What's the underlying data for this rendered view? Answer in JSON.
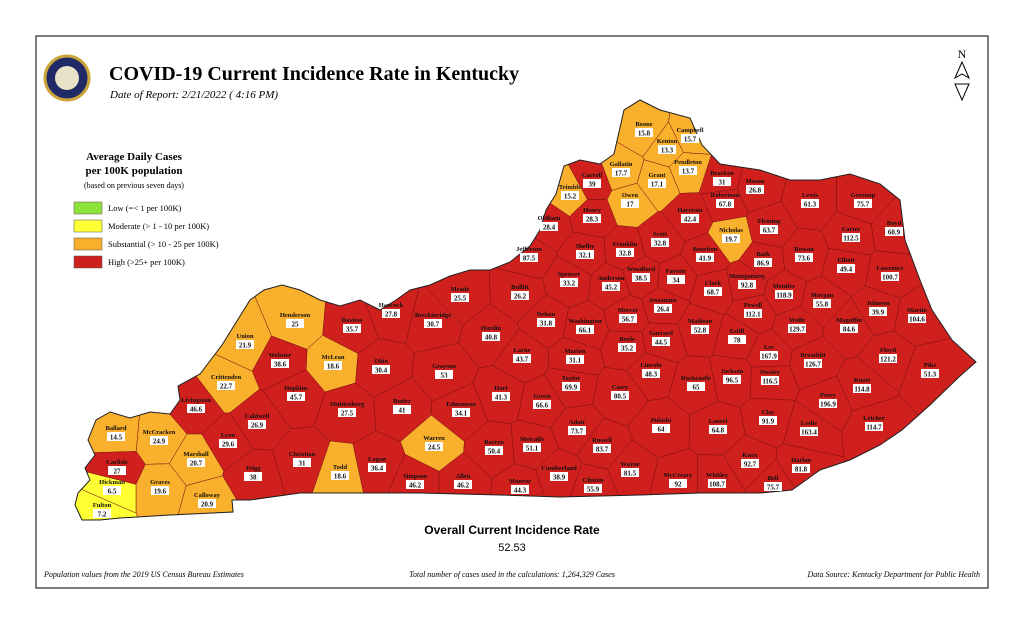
{
  "header": {
    "title": "COVID-19 Current Incidence Rate in Kentucky",
    "date": "Date of Report: 2/21/2022 ( 4:16 PM)"
  },
  "compass": "N",
  "legend": {
    "title_lines": [
      "Average Daily Cases",
      "per 100K population"
    ],
    "note": "(based on previous seven days)",
    "items": [
      {
        "label": "Low (=< 1 per 100K)",
        "color": "#8ee03a"
      },
      {
        "label": "Moderate (> 1 - 10 per 100K)",
        "color": "#ffff33"
      },
      {
        "label": "Substantial (> 10 - 25 per 100K)",
        "color": "#f9b02c"
      },
      {
        "label": "High (>25+ per 100K)",
        "color": "#d0201e"
      }
    ]
  },
  "counties": [
    {
      "name": "Boone",
      "value": 15.8,
      "color": "#f9b02c"
    },
    {
      "name": "Campbell",
      "value": 15.7,
      "color": "#f9b02c"
    },
    {
      "name": "Kenton",
      "value": 13.3,
      "color": "#f9b02c"
    },
    {
      "name": "Gallatin",
      "value": 17.7,
      "color": "#f9b02c"
    },
    {
      "name": "Carroll",
      "value": 39,
      "color": "#d0201e"
    },
    {
      "name": "Pendleton",
      "value": 13.7,
      "color": "#f9b02c"
    },
    {
      "name": "Grant",
      "value": 17.1,
      "color": "#f9b02c"
    },
    {
      "name": "Bracken",
      "value": 31,
      "color": "#d0201e"
    },
    {
      "name": "Mason",
      "value": 26.8,
      "color": "#d0201e"
    },
    {
      "name": "Trimble",
      "value": 15.2,
      "color": "#f9b02c"
    },
    {
      "name": "Owen",
      "value": 17,
      "color": "#f9b02c"
    },
    {
      "name": "Robertson",
      "value": 67.8,
      "color": "#d0201e"
    },
    {
      "name": "Lewis",
      "value": 61.3,
      "color": "#d0201e"
    },
    {
      "name": "Greenup",
      "value": 75.7,
      "color": "#d0201e"
    },
    {
      "name": "Henry",
      "value": 28.3,
      "color": "#d0201e"
    },
    {
      "name": "Harrison",
      "value": 42.4,
      "color": "#d0201e"
    },
    {
      "name": "Fleming",
      "value": 63.7,
      "color": "#d0201e"
    },
    {
      "name": "Boyd",
      "value": 60.9,
      "color": "#d0201e"
    },
    {
      "name": "Oldham",
      "value": 28.4,
      "color": "#d0201e"
    },
    {
      "name": "Scott",
      "value": 32.8,
      "color": "#d0201e"
    },
    {
      "name": "Nicholas",
      "value": 19.7,
      "color": "#f9b02c"
    },
    {
      "name": "Carter",
      "value": 112.5,
      "color": "#d0201e"
    },
    {
      "name": "Franklin",
      "value": 32.8,
      "color": "#d0201e"
    },
    {
      "name": "Shelby",
      "value": 32.1,
      "color": "#d0201e"
    },
    {
      "name": "Jefferson",
      "value": 87.5,
      "color": "#d0201e"
    },
    {
      "name": "Bourbon",
      "value": 41.9,
      "color": "#d0201e"
    },
    {
      "name": "Bath",
      "value": 86.9,
      "color": "#d0201e"
    },
    {
      "name": "Rowan",
      "value": 73.6,
      "color": "#d0201e"
    },
    {
      "name": "Elliott",
      "value": 49.4,
      "color": "#d0201e"
    },
    {
      "name": "Lawrence",
      "value": 100.7,
      "color": "#d0201e"
    },
    {
      "name": "Spencer",
      "value": 33.2,
      "color": "#d0201e"
    },
    {
      "name": "Anderson",
      "value": 45.2,
      "color": "#d0201e"
    },
    {
      "name": "Woodford",
      "value": 38.5,
      "color": "#d0201e"
    },
    {
      "name": "Fayette",
      "value": 34,
      "color": "#d0201e"
    },
    {
      "name": "Clark",
      "value": 68.7,
      "color": "#d0201e"
    },
    {
      "name": "Montgomery",
      "value": 92.8,
      "color": "#d0201e"
    },
    {
      "name": "Menifee",
      "value": 118.9,
      "color": "#d0201e"
    },
    {
      "name": "Morgan",
      "value": 55.8,
      "color": "#d0201e"
    },
    {
      "name": "Bullitt",
      "value": 26.2,
      "color": "#d0201e"
    },
    {
      "name": "Meade",
      "value": 25.5,
      "color": "#d0201e"
    },
    {
      "name": "Johnson",
      "value": 39.9,
      "color": "#d0201e"
    },
    {
      "name": "Martin",
      "value": 104.6,
      "color": "#d0201e"
    },
    {
      "name": "Jessamine",
      "value": 26.4,
      "color": "#d0201e"
    },
    {
      "name": "Mercer",
      "value": 56.7,
      "color": "#d0201e"
    },
    {
      "name": "Powell",
      "value": 112.1,
      "color": "#d0201e"
    },
    {
      "name": "Wolfe",
      "value": 129.7,
      "color": "#d0201e"
    },
    {
      "name": "Magoffin",
      "value": 84.6,
      "color": "#d0201e"
    },
    {
      "name": "Hancock",
      "value": 27.8,
      "color": "#d0201e"
    },
    {
      "name": "Daviess",
      "value": 35.7,
      "color": "#d0201e"
    },
    {
      "name": "Breckinridge",
      "value": 30.7,
      "color": "#d0201e"
    },
    {
      "name": "Henderson",
      "value": 25,
      "color": "#f9b02c"
    },
    {
      "name": "Nelson",
      "value": 31.8,
      "color": "#d0201e"
    },
    {
      "name": "Washington",
      "value": 66.1,
      "color": "#d0201e"
    },
    {
      "name": "Madison",
      "value": 52.8,
      "color": "#d0201e"
    },
    {
      "name": "Hardin",
      "value": 40.8,
      "color": "#d0201e"
    },
    {
      "name": "Union",
      "value": 21.9,
      "color": "#f9b02c"
    },
    {
      "name": "Boyle",
      "value": 35.2,
      "color": "#d0201e"
    },
    {
      "name": "Garrard",
      "value": 44.5,
      "color": "#d0201e"
    },
    {
      "name": "Estill",
      "value": 78,
      "color": "#d0201e"
    },
    {
      "name": "Lee",
      "value": 167.9,
      "color": "#d0201e"
    },
    {
      "name": "Floyd",
      "value": 121.2,
      "color": "#d0201e"
    },
    {
      "name": "Larue",
      "value": 43.7,
      "color": "#d0201e"
    },
    {
      "name": "Marion",
      "value": 31.1,
      "color": "#d0201e"
    },
    {
      "name": "Breathitt",
      "value": 126.7,
      "color": "#d0201e"
    },
    {
      "name": "McLean",
      "value": 18.6,
      "color": "#f9b02c"
    },
    {
      "name": "Webster",
      "value": 38.6,
      "color": "#d0201e"
    },
    {
      "name": "Ohio",
      "value": 30.4,
      "color": "#d0201e"
    },
    {
      "name": "Lincoln",
      "value": 48.3,
      "color": "#d0201e"
    },
    {
      "name": "Grayson",
      "value": 53,
      "color": "#d0201e"
    },
    {
      "name": "Jackson",
      "value": 96.5,
      "color": "#d0201e"
    },
    {
      "name": "Owsley",
      "value": 116.5,
      "color": "#d0201e"
    },
    {
      "name": "Pike",
      "value": 51.3,
      "color": "#d0201e"
    },
    {
      "name": "Crittenden",
      "value": 22.7,
      "color": "#f9b02c"
    },
    {
      "name": "Taylor",
      "value": 69.9,
      "color": "#d0201e"
    },
    {
      "name": "Rockcastle",
      "value": 65,
      "color": "#d0201e"
    },
    {
      "name": "Knott",
      "value": 114.8,
      "color": "#d0201e"
    },
    {
      "name": "Hopkins",
      "value": 45.7,
      "color": "#d0201e"
    },
    {
      "name": "Hart",
      "value": 41.3,
      "color": "#d0201e"
    },
    {
      "name": "Casey",
      "value": 80.5,
      "color": "#d0201e"
    },
    {
      "name": "Muhlenberg",
      "value": 27.5,
      "color": "#d0201e"
    },
    {
      "name": "Butler",
      "value": 41,
      "color": "#d0201e"
    },
    {
      "name": "Edmonson",
      "value": 34.1,
      "color": "#d0201e"
    },
    {
      "name": "Green",
      "value": 66.6,
      "color": "#d0201e"
    },
    {
      "name": "Perry",
      "value": 196.9,
      "color": "#d0201e"
    },
    {
      "name": "Livingston",
      "value": 46.6,
      "color": "#d0201e"
    },
    {
      "name": "Caldwell",
      "value": 26.9,
      "color": "#d0201e"
    },
    {
      "name": "Clay",
      "value": 91.9,
      "color": "#d0201e"
    },
    {
      "name": "Pulaski",
      "value": 64,
      "color": "#d0201e"
    },
    {
      "name": "Laurel",
      "value": 64.8,
      "color": "#d0201e"
    },
    {
      "name": "Leslie",
      "value": 163.4,
      "color": "#d0201e"
    },
    {
      "name": "Letcher",
      "value": 114.7,
      "color": "#d0201e"
    },
    {
      "name": "Adair",
      "value": 73.7,
      "color": "#d0201e"
    },
    {
      "name": "Ballard",
      "value": 14.5,
      "color": "#f9b02c"
    },
    {
      "name": "McCracken",
      "value": 24.9,
      "color": "#f9b02c"
    },
    {
      "name": "Lyon",
      "value": 29.6,
      "color": "#d0201e"
    },
    {
      "name": "Warren",
      "value": 24.5,
      "color": "#f9b02c"
    },
    {
      "name": "Barren",
      "value": 50.4,
      "color": "#d0201e"
    },
    {
      "name": "Metcalfe",
      "value": 51.1,
      "color": "#d0201e"
    },
    {
      "name": "Russell",
      "value": 83.7,
      "color": "#d0201e"
    },
    {
      "name": "Christian",
      "value": 31,
      "color": "#d0201e"
    },
    {
      "name": "Marshall",
      "value": 20.7,
      "color": "#f9b02c"
    },
    {
      "name": "Carlisle",
      "value": 27,
      "color": "#d0201e"
    },
    {
      "name": "Knox",
      "value": 92.7,
      "color": "#d0201e"
    },
    {
      "name": "Harlan",
      "value": 81.8,
      "color": "#d0201e"
    },
    {
      "name": "Logan",
      "value": 36.4,
      "color": "#d0201e"
    },
    {
      "name": "Todd",
      "value": 18.6,
      "color": "#f9b02c"
    },
    {
      "name": "Trigg",
      "value": 38,
      "color": "#d0201e"
    },
    {
      "name": "Cumberland",
      "value": 38.9,
      "color": "#d0201e"
    },
    {
      "name": "Wayne",
      "value": 81.5,
      "color": "#d0201e"
    },
    {
      "name": "Simpson",
      "value": 46.2,
      "color": "#d0201e"
    },
    {
      "name": "Allen",
      "value": 46.2,
      "color": "#d0201e"
    },
    {
      "name": "Graves",
      "value": 19.6,
      "color": "#f9b02c"
    },
    {
      "name": "Hickman",
      "value": 6.5,
      "color": "#ffff33"
    },
    {
      "name": "Monroe",
      "value": 44.3,
      "color": "#d0201e"
    },
    {
      "name": "Clinton",
      "value": 55.9,
      "color": "#d0201e"
    },
    {
      "name": "McCreary",
      "value": 92,
      "color": "#d0201e"
    },
    {
      "name": "Whitley",
      "value": 108.7,
      "color": "#d0201e"
    },
    {
      "name": "Bell",
      "value": 75.7,
      "color": "#d0201e"
    },
    {
      "name": "Calloway",
      "value": 20.9,
      "color": "#f9b02c"
    },
    {
      "name": "Fulton",
      "value": 7.2,
      "color": "#ffff33"
    }
  ],
  "summary": {
    "label": "Overall Current Incidence Rate",
    "value": 52.53
  },
  "footer": {
    "left": "Population values from the 2019 US Census Bureau Estimates",
    "center": "Total number of cases used in the calculations: 1,264,329 Cases",
    "right": "Data Source: Kentucky Department for Public Health"
  }
}
